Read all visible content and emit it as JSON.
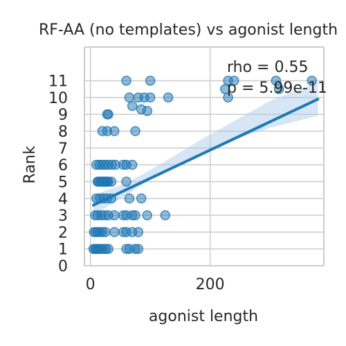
{
  "chart_data": {
    "type": "scatter",
    "title": "RF-AA (no templates) vs agonist length",
    "xlabel": "agonist length",
    "ylabel": "Rank",
    "xlim": [
      -10,
      390
    ],
    "ylim": [
      0,
      13
    ],
    "x_ticks": [
      0,
      200
    ],
    "y_ticks": [
      0,
      1,
      2,
      3,
      4,
      5,
      6,
      7,
      8,
      9,
      10,
      11
    ],
    "grid": true,
    "annotations": [
      "rho = 0.55",
      "p = 5.99e-11"
    ],
    "point_color": "#1f77b4",
    "line_color": "#1f77b4",
    "band_color": "#a6c8e6",
    "points": [
      [
        5,
        1
      ],
      [
        8,
        1
      ],
      [
        10,
        1
      ],
      [
        12,
        1
      ],
      [
        14,
        1
      ],
      [
        18,
        1
      ],
      [
        22,
        1
      ],
      [
        26,
        1
      ],
      [
        30,
        1
      ],
      [
        60,
        1
      ],
      [
        65,
        1
      ],
      [
        75,
        1
      ],
      [
        80,
        1
      ],
      [
        6,
        2
      ],
      [
        9,
        2
      ],
      [
        12,
        2
      ],
      [
        16,
        2
      ],
      [
        20,
        2
      ],
      [
        25,
        2
      ],
      [
        40,
        2
      ],
      [
        55,
        2
      ],
      [
        60,
        2
      ],
      [
        70,
        2
      ],
      [
        80,
        2
      ],
      [
        8,
        3
      ],
      [
        12,
        3
      ],
      [
        18,
        3
      ],
      [
        24,
        3
      ],
      [
        30,
        3
      ],
      [
        40,
        3
      ],
      [
        55,
        3
      ],
      [
        60,
        3
      ],
      [
        70,
        3
      ],
      [
        75,
        3
      ],
      [
        95,
        3
      ],
      [
        125,
        3
      ],
      [
        10,
        4
      ],
      [
        16,
        4
      ],
      [
        22,
        4
      ],
      [
        28,
        4
      ],
      [
        35,
        4
      ],
      [
        65,
        4
      ],
      [
        85,
        4
      ],
      [
        12,
        5
      ],
      [
        14,
        5
      ],
      [
        16,
        5
      ],
      [
        18,
        5
      ],
      [
        20,
        5
      ],
      [
        22,
        5
      ],
      [
        24,
        5
      ],
      [
        26,
        5
      ],
      [
        28,
        5
      ],
      [
        30,
        5
      ],
      [
        35,
        5
      ],
      [
        60,
        5
      ],
      [
        10,
        6
      ],
      [
        15,
        6
      ],
      [
        20,
        6
      ],
      [
        25,
        6
      ],
      [
        30,
        6
      ],
      [
        36,
        6
      ],
      [
        42,
        6
      ],
      [
        55,
        6
      ],
      [
        60,
        6
      ],
      [
        70,
        6
      ],
      [
        20,
        8
      ],
      [
        28,
        8
      ],
      [
        40,
        8
      ],
      [
        75,
        8
      ],
      [
        28,
        9
      ],
      [
        30,
        9
      ],
      [
        70,
        9.5
      ],
      [
        85,
        9.3
      ],
      [
        95,
        9.2
      ],
      [
        65,
        10
      ],
      [
        80,
        10
      ],
      [
        90,
        10
      ],
      [
        100,
        10
      ],
      [
        130,
        10
      ],
      [
        230,
        10
      ],
      [
        60,
        11
      ],
      [
        100,
        11
      ],
      [
        230,
        11
      ],
      [
        240,
        11
      ],
      [
        310,
        11
      ],
      [
        370,
        11
      ],
      [
        225,
        10.5
      ],
      [
        315,
        10.5
      ]
    ],
    "regression": {
      "x": [
        5,
        380
      ],
      "y": [
        3.6,
        9.9
      ]
    },
    "band": {
      "x": [
        5,
        60,
        120,
        180,
        240,
        300,
        380
      ],
      "lower": [
        3.0,
        4.2,
        5.6,
        6.6,
        7.5,
        8.2,
        8.9
      ],
      "upper": [
        4.2,
        4.9,
        6.1,
        7.4,
        8.6,
        9.8,
        10.9
      ]
    }
  }
}
